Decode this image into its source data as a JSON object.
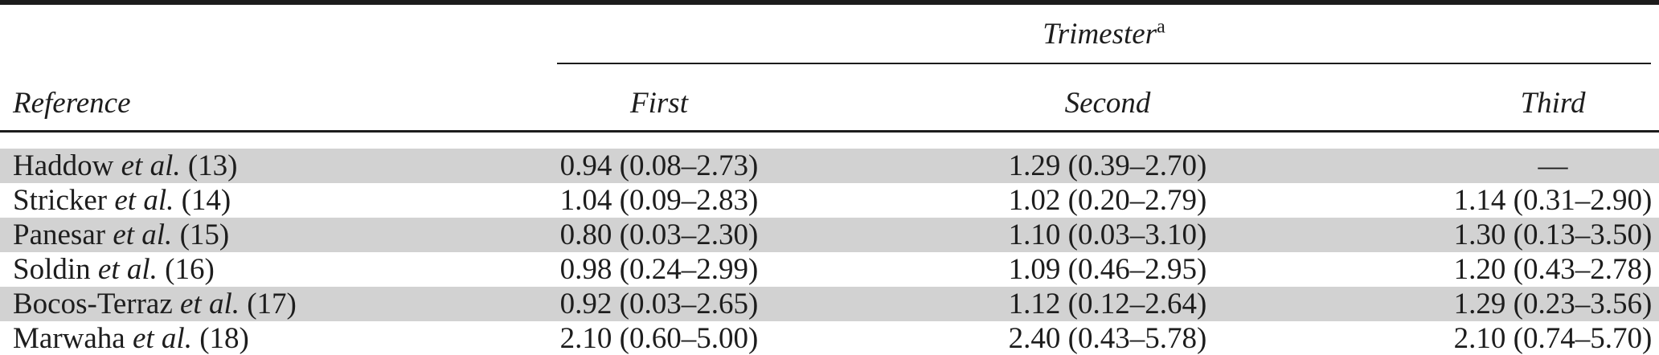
{
  "colors": {
    "stripe": "#d2d2d2",
    "text": "#1d1d1d",
    "rule": "#1c1c1c"
  },
  "table": {
    "group_header": {
      "label": "Trimester",
      "superscript": "a"
    },
    "columns": {
      "reference": "Reference",
      "first": "First",
      "second": "Second",
      "third": "Third"
    },
    "rows": [
      {
        "author": "Haddow",
        "etal": "et al.",
        "citation": "(13)",
        "first": "0.94 (0.08–2.73)",
        "second": "1.29 (0.39–2.70)",
        "third": "—"
      },
      {
        "author": "Stricker",
        "etal": "et al.",
        "citation": "(14)",
        "first": "1.04 (0.09–2.83)",
        "second": "1.02 (0.20–2.79)",
        "third": "1.14 (0.31–2.90)"
      },
      {
        "author": "Panesar",
        "etal": "et al.",
        "citation": "(15)",
        "first": "0.80 (0.03–2.30)",
        "second": "1.10 (0.03–3.10)",
        "third": "1.30 (0.13–3.50)"
      },
      {
        "author": "Soldin",
        "etal": "et al.",
        "citation": "(16)",
        "first": "0.98 (0.24–2.99)",
        "second": "1.09 (0.46–2.95)",
        "third": "1.20 (0.43–2.78)"
      },
      {
        "author": "Bocos-Terraz",
        "etal": "et al.",
        "citation": "(17)",
        "first": "0.92 (0.03–2.65)",
        "second": "1.12 (0.12–2.64)",
        "third": "1.29 (0.23–3.56)"
      },
      {
        "author": "Marwaha",
        "etal": "et al.",
        "citation": "(18)",
        "first": "2.10 (0.60–5.00)",
        "second": "2.40 (0.43–5.78)",
        "third": "2.10 (0.74–5.70)"
      }
    ]
  }
}
